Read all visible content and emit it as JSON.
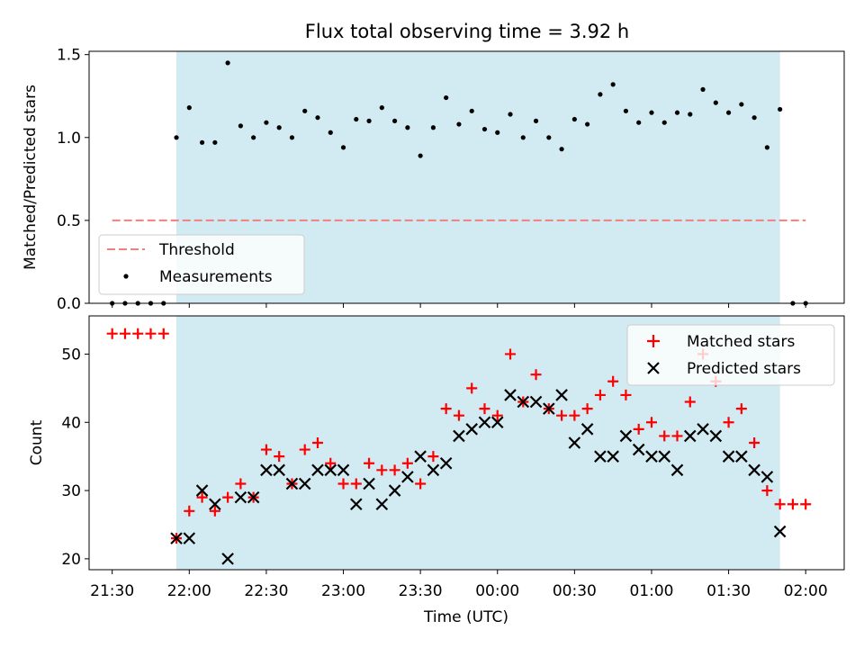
{
  "title": "Flux total observing time = 3.92 h",
  "xlabel": "Time (UTC)",
  "colors": {
    "window": "#add8e6",
    "threshold": "#f08080",
    "measurement": "#000000",
    "matched": "#ff0000",
    "predicted": "#000000"
  },
  "chart_data": [
    {
      "type": "scatter",
      "panel": "top",
      "ylabel": "Matched/Predicted stars",
      "xlim": [
        "21:21",
        "02:15"
      ],
      "ylim": [
        0,
        1.52
      ],
      "yticks": [
        "0.0",
        "0.5",
        "1.0",
        "1.5"
      ],
      "xticks": [
        "21:30",
        "22:00",
        "22:30",
        "23:00",
        "23:30",
        "00:00",
        "00:30",
        "01:00",
        "01:30",
        "02:00"
      ],
      "observing_window": [
        "21:55",
        "01:50"
      ],
      "threshold": {
        "label": "Threshold",
        "value": 0.5,
        "x_range": [
          "21:30",
          "02:00"
        ]
      },
      "legend": {
        "position": "lower-left",
        "entries": [
          "Threshold",
          "Measurements"
        ]
      },
      "series": [
        {
          "name": "Measurements",
          "points": [
            [
              "21:30",
              0
            ],
            [
              "21:35",
              0
            ],
            [
              "21:40",
              0
            ],
            [
              "21:45",
              0
            ],
            [
              "21:50",
              0
            ],
            [
              "21:55",
              1.0
            ],
            [
              "22:00",
              1.18
            ],
            [
              "22:05",
              0.97
            ],
            [
              "22:10",
              0.97
            ],
            [
              "22:15",
              1.45
            ],
            [
              "22:20",
              1.07
            ],
            [
              "22:25",
              1.0
            ],
            [
              "22:30",
              1.09
            ],
            [
              "22:35",
              1.06
            ],
            [
              "22:40",
              1.0
            ],
            [
              "22:45",
              1.16
            ],
            [
              "22:50",
              1.12
            ],
            [
              "22:55",
              1.03
            ],
            [
              "23:00",
              0.94
            ],
            [
              "23:05",
              1.11
            ],
            [
              "23:10",
              1.1
            ],
            [
              "23:15",
              1.18
            ],
            [
              "23:20",
              1.1
            ],
            [
              "23:25",
              1.06
            ],
            [
              "23:30",
              0.89
            ],
            [
              "23:35",
              1.06
            ],
            [
              "23:40",
              1.24
            ],
            [
              "23:45",
              1.08
            ],
            [
              "23:50",
              1.16
            ],
            [
              "23:55",
              1.05
            ],
            [
              "00:00",
              1.03
            ],
            [
              "00:05",
              1.14
            ],
            [
              "00:10",
              1.0
            ],
            [
              "00:15",
              1.1
            ],
            [
              "00:20",
              1.0
            ],
            [
              "00:25",
              0.93
            ],
            [
              "00:30",
              1.11
            ],
            [
              "00:35",
              1.08
            ],
            [
              "00:40",
              1.26
            ],
            [
              "00:45",
              1.32
            ],
            [
              "00:50",
              1.16
            ],
            [
              "00:55",
              1.09
            ],
            [
              "01:00",
              1.15
            ],
            [
              "01:05",
              1.09
            ],
            [
              "01:10",
              1.15
            ],
            [
              "01:15",
              1.14
            ],
            [
              "01:20",
              1.29
            ],
            [
              "01:25",
              1.21
            ],
            [
              "01:30",
              1.15
            ],
            [
              "01:35",
              1.2
            ],
            [
              "01:40",
              1.12
            ],
            [
              "01:45",
              0.94
            ],
            [
              "01:50",
              1.17
            ],
            [
              "01:55",
              0
            ],
            [
              "02:00",
              0
            ]
          ]
        }
      ]
    },
    {
      "type": "scatter",
      "panel": "bottom",
      "ylabel": "Count",
      "xlim": [
        "21:21",
        "02:15"
      ],
      "ylim": [
        18.4,
        55.6
      ],
      "yticks": [
        "20",
        "30",
        "40",
        "50"
      ],
      "xticks": [
        "21:30",
        "22:00",
        "22:30",
        "23:00",
        "23:30",
        "00:00",
        "00:30",
        "01:00",
        "01:30",
        "02:00"
      ],
      "observing_window": [
        "21:55",
        "01:50"
      ],
      "legend": {
        "position": "top-right",
        "entries": [
          "Matched stars",
          "Predicted stars"
        ]
      },
      "series": [
        {
          "name": "Matched stars",
          "marker": "+",
          "points": [
            [
              "21:30",
              53
            ],
            [
              "21:35",
              53
            ],
            [
              "21:40",
              53
            ],
            [
              "21:45",
              53
            ],
            [
              "21:50",
              53
            ],
            [
              "21:55",
              23
            ],
            [
              "22:00",
              27
            ],
            [
              "22:05",
              29
            ],
            [
              "22:10",
              27
            ],
            [
              "22:15",
              29
            ],
            [
              "22:20",
              31
            ],
            [
              "22:25",
              29
            ],
            [
              "22:30",
              36
            ],
            [
              "22:35",
              35
            ],
            [
              "22:40",
              31
            ],
            [
              "22:45",
              36
            ],
            [
              "22:50",
              37
            ],
            [
              "22:55",
              34
            ],
            [
              "23:00",
              31
            ],
            [
              "23:05",
              31
            ],
            [
              "23:10",
              34
            ],
            [
              "23:15",
              33
            ],
            [
              "23:20",
              33
            ],
            [
              "23:25",
              34
            ],
            [
              "23:30",
              31
            ],
            [
              "23:35",
              35
            ],
            [
              "23:40",
              42
            ],
            [
              "23:45",
              41
            ],
            [
              "23:50",
              45
            ],
            [
              "23:55",
              42
            ],
            [
              "00:00",
              41
            ],
            [
              "00:05",
              50
            ],
            [
              "00:10",
              43
            ],
            [
              "00:15",
              47
            ],
            [
              "00:20",
              42
            ],
            [
              "00:25",
              41
            ],
            [
              "00:30",
              41
            ],
            [
              "00:35",
              42
            ],
            [
              "00:40",
              44
            ],
            [
              "00:45",
              46
            ],
            [
              "00:50",
              44
            ],
            [
              "00:55",
              39
            ],
            [
              "01:00",
              40
            ],
            [
              "01:05",
              38
            ],
            [
              "01:10",
              38
            ],
            [
              "01:15",
              43
            ],
            [
              "01:20",
              50
            ],
            [
              "01:25",
              46
            ],
            [
              "01:30",
              40
            ],
            [
              "01:35",
              42
            ],
            [
              "01:40",
              37
            ],
            [
              "01:45",
              30
            ],
            [
              "01:50",
              28
            ],
            [
              "01:55",
              28
            ],
            [
              "02:00",
              28
            ]
          ]
        },
        {
          "name": "Predicted stars",
          "marker": "x",
          "points": [
            [
              "21:55",
              23
            ],
            [
              "22:00",
              23
            ],
            [
              "22:05",
              30
            ],
            [
              "22:10",
              28
            ],
            [
              "22:15",
              20
            ],
            [
              "22:20",
              29
            ],
            [
              "22:25",
              29
            ],
            [
              "22:30",
              33
            ],
            [
              "22:35",
              33
            ],
            [
              "22:40",
              31
            ],
            [
              "22:45",
              31
            ],
            [
              "22:50",
              33
            ],
            [
              "22:55",
              33
            ],
            [
              "23:00",
              33
            ],
            [
              "23:05",
              28
            ],
            [
              "23:10",
              31
            ],
            [
              "23:15",
              28
            ],
            [
              "23:20",
              30
            ],
            [
              "23:25",
              32
            ],
            [
              "23:30",
              35
            ],
            [
              "23:35",
              33
            ],
            [
              "23:40",
              34
            ],
            [
              "23:45",
              38
            ],
            [
              "23:50",
              39
            ],
            [
              "23:55",
              40
            ],
            [
              "00:00",
              40
            ],
            [
              "00:05",
              44
            ],
            [
              "00:10",
              43
            ],
            [
              "00:15",
              43
            ],
            [
              "00:20",
              42
            ],
            [
              "00:25",
              44
            ],
            [
              "00:30",
              37
            ],
            [
              "00:35",
              39
            ],
            [
              "00:40",
              35
            ],
            [
              "00:45",
              35
            ],
            [
              "00:50",
              38
            ],
            [
              "00:55",
              36
            ],
            [
              "01:00",
              35
            ],
            [
              "01:05",
              35
            ],
            [
              "01:10",
              33
            ],
            [
              "01:15",
              38
            ],
            [
              "01:20",
              39
            ],
            [
              "01:25",
              38
            ],
            [
              "01:30",
              35
            ],
            [
              "01:35",
              35
            ],
            [
              "01:40",
              33
            ],
            [
              "01:45",
              32
            ],
            [
              "01:50",
              24
            ]
          ]
        }
      ]
    }
  ]
}
